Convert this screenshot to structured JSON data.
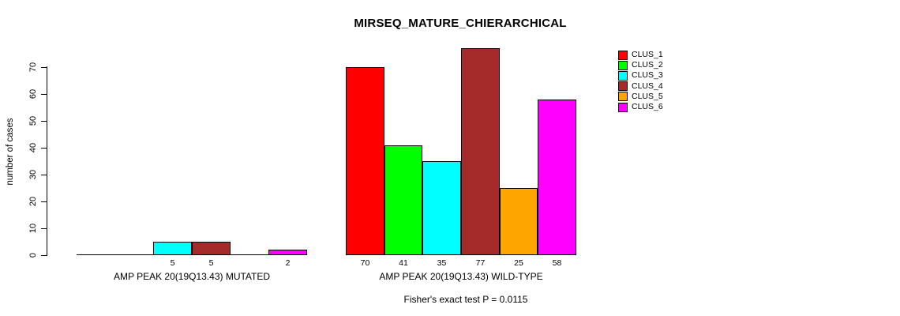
{
  "chart_data": {
    "type": "bar",
    "title": "MIRSEQ_MATURE_CHIERARCHICAL",
    "ylabel": "number of cases",
    "ylim": [
      0,
      77
    ],
    "yticks": [
      0,
      10,
      20,
      30,
      40,
      50,
      60,
      70
    ],
    "grid": false,
    "legend_position": "right",
    "legend": [
      {
        "label": "CLUS_1",
        "color": "#ff0000"
      },
      {
        "label": "CLUS_2",
        "color": "#00ff00"
      },
      {
        "label": "CLUS_3",
        "color": "#00ffff"
      },
      {
        "label": "CLUS_4",
        "color": "#a52a2a"
      },
      {
        "label": "CLUS_5",
        "color": "#ffa500"
      },
      {
        "label": "CLUS_6",
        "color": "#ff00ff"
      }
    ],
    "series_names": [
      "CLUS_1",
      "CLUS_2",
      "CLUS_3",
      "CLUS_4",
      "CLUS_5",
      "CLUS_6"
    ],
    "series_colors": [
      "#ff0000",
      "#00ff00",
      "#00ffff",
      "#a52a2a",
      "#ffa500",
      "#ff00ff"
    ],
    "groups": [
      {
        "label": "AMP PEAK 20(19Q13.43) MUTATED",
        "values": [
          0,
          0,
          5,
          5,
          0,
          2
        ]
      },
      {
        "label": "AMP PEAK 20(19Q13.43) WILD-TYPE",
        "values": [
          70,
          41,
          35,
          77,
          25,
          58
        ]
      }
    ],
    "footnote": "Fisher's exact test P = 0.0115"
  },
  "colors": {
    "background": "#ffffff",
    "axis": "#000000",
    "bar_border": "#000000",
    "text": "#000000"
  }
}
